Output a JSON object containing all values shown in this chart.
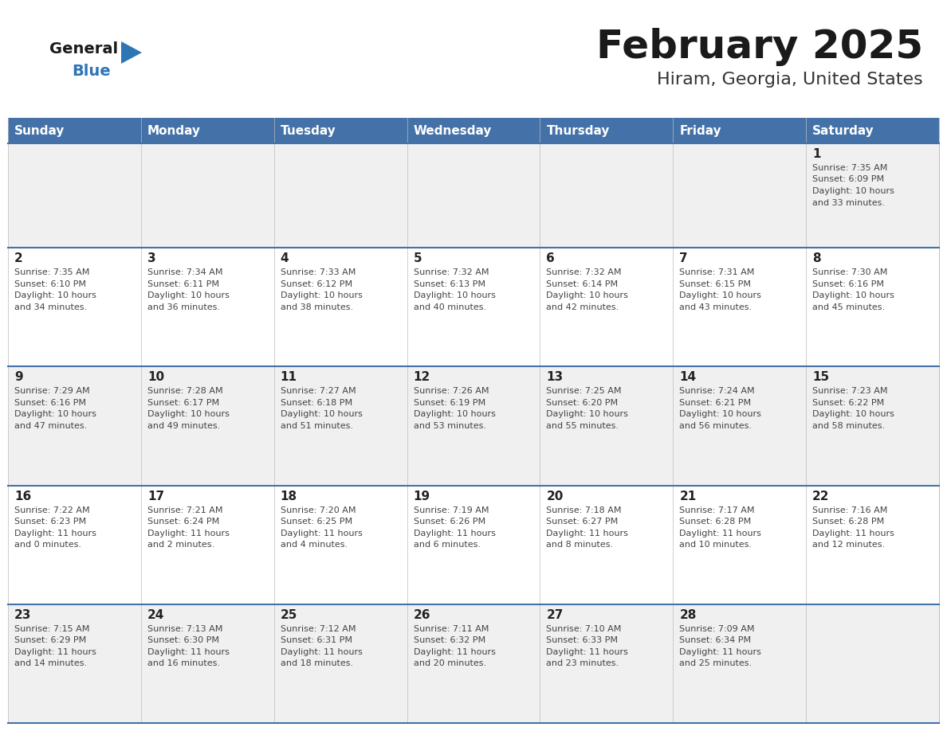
{
  "title": "February 2025",
  "subtitle": "Hiram, Georgia, United States",
  "days_of_week": [
    "Sunday",
    "Monday",
    "Tuesday",
    "Wednesday",
    "Thursday",
    "Friday",
    "Saturday"
  ],
  "header_bg": "#4472a8",
  "header_text": "#ffffff",
  "row_bg_odd": "#f0f0f0",
  "row_bg_even": "#ffffff",
  "cell_text_color": "#444444",
  "day_num_color": "#222222",
  "border_color": "#4472a8",
  "title_color": "#1a1a1a",
  "subtitle_color": "#333333",
  "logo_general_color": "#1a1a1a",
  "logo_blue_color": "#2e75b6",
  "calendar_data": [
    [
      null,
      null,
      null,
      null,
      null,
      null,
      {
        "day": 1,
        "sunrise": "7:35 AM",
        "sunset": "6:09 PM",
        "daylight_h": "10 hours",
        "daylight_m": "and 33 minutes."
      }
    ],
    [
      {
        "day": 2,
        "sunrise": "7:35 AM",
        "sunset": "6:10 PM",
        "daylight_h": "10 hours",
        "daylight_m": "and 34 minutes."
      },
      {
        "day": 3,
        "sunrise": "7:34 AM",
        "sunset": "6:11 PM",
        "daylight_h": "10 hours",
        "daylight_m": "and 36 minutes."
      },
      {
        "day": 4,
        "sunrise": "7:33 AM",
        "sunset": "6:12 PM",
        "daylight_h": "10 hours",
        "daylight_m": "and 38 minutes."
      },
      {
        "day": 5,
        "sunrise": "7:32 AM",
        "sunset": "6:13 PM",
        "daylight_h": "10 hours",
        "daylight_m": "and 40 minutes."
      },
      {
        "day": 6,
        "sunrise": "7:32 AM",
        "sunset": "6:14 PM",
        "daylight_h": "10 hours",
        "daylight_m": "and 42 minutes."
      },
      {
        "day": 7,
        "sunrise": "7:31 AM",
        "sunset": "6:15 PM",
        "daylight_h": "10 hours",
        "daylight_m": "and 43 minutes."
      },
      {
        "day": 8,
        "sunrise": "7:30 AM",
        "sunset": "6:16 PM",
        "daylight_h": "10 hours",
        "daylight_m": "and 45 minutes."
      }
    ],
    [
      {
        "day": 9,
        "sunrise": "7:29 AM",
        "sunset": "6:16 PM",
        "daylight_h": "10 hours",
        "daylight_m": "and 47 minutes."
      },
      {
        "day": 10,
        "sunrise": "7:28 AM",
        "sunset": "6:17 PM",
        "daylight_h": "10 hours",
        "daylight_m": "and 49 minutes."
      },
      {
        "day": 11,
        "sunrise": "7:27 AM",
        "sunset": "6:18 PM",
        "daylight_h": "10 hours",
        "daylight_m": "and 51 minutes."
      },
      {
        "day": 12,
        "sunrise": "7:26 AM",
        "sunset": "6:19 PM",
        "daylight_h": "10 hours",
        "daylight_m": "and 53 minutes."
      },
      {
        "day": 13,
        "sunrise": "7:25 AM",
        "sunset": "6:20 PM",
        "daylight_h": "10 hours",
        "daylight_m": "and 55 minutes."
      },
      {
        "day": 14,
        "sunrise": "7:24 AM",
        "sunset": "6:21 PM",
        "daylight_h": "10 hours",
        "daylight_m": "and 56 minutes."
      },
      {
        "day": 15,
        "sunrise": "7:23 AM",
        "sunset": "6:22 PM",
        "daylight_h": "10 hours",
        "daylight_m": "and 58 minutes."
      }
    ],
    [
      {
        "day": 16,
        "sunrise": "7:22 AM",
        "sunset": "6:23 PM",
        "daylight_h": "11 hours",
        "daylight_m": "and 0 minutes."
      },
      {
        "day": 17,
        "sunrise": "7:21 AM",
        "sunset": "6:24 PM",
        "daylight_h": "11 hours",
        "daylight_m": "and 2 minutes."
      },
      {
        "day": 18,
        "sunrise": "7:20 AM",
        "sunset": "6:25 PM",
        "daylight_h": "11 hours",
        "daylight_m": "and 4 minutes."
      },
      {
        "day": 19,
        "sunrise": "7:19 AM",
        "sunset": "6:26 PM",
        "daylight_h": "11 hours",
        "daylight_m": "and 6 minutes."
      },
      {
        "day": 20,
        "sunrise": "7:18 AM",
        "sunset": "6:27 PM",
        "daylight_h": "11 hours",
        "daylight_m": "and 8 minutes."
      },
      {
        "day": 21,
        "sunrise": "7:17 AM",
        "sunset": "6:28 PM",
        "daylight_h": "11 hours",
        "daylight_m": "and 10 minutes."
      },
      {
        "day": 22,
        "sunrise": "7:16 AM",
        "sunset": "6:28 PM",
        "daylight_h": "11 hours",
        "daylight_m": "and 12 minutes."
      }
    ],
    [
      {
        "day": 23,
        "sunrise": "7:15 AM",
        "sunset": "6:29 PM",
        "daylight_h": "11 hours",
        "daylight_m": "and 14 minutes."
      },
      {
        "day": 24,
        "sunrise": "7:13 AM",
        "sunset": "6:30 PM",
        "daylight_h": "11 hours",
        "daylight_m": "and 16 minutes."
      },
      {
        "day": 25,
        "sunrise": "7:12 AM",
        "sunset": "6:31 PM",
        "daylight_h": "11 hours",
        "daylight_m": "and 18 minutes."
      },
      {
        "day": 26,
        "sunrise": "7:11 AM",
        "sunset": "6:32 PM",
        "daylight_h": "11 hours",
        "daylight_m": "and 20 minutes."
      },
      {
        "day": 27,
        "sunrise": "7:10 AM",
        "sunset": "6:33 PM",
        "daylight_h": "11 hours",
        "daylight_m": "and 23 minutes."
      },
      {
        "day": 28,
        "sunrise": "7:09 AM",
        "sunset": "6:34 PM",
        "daylight_h": "11 hours",
        "daylight_m": "and 25 minutes."
      },
      null
    ]
  ]
}
